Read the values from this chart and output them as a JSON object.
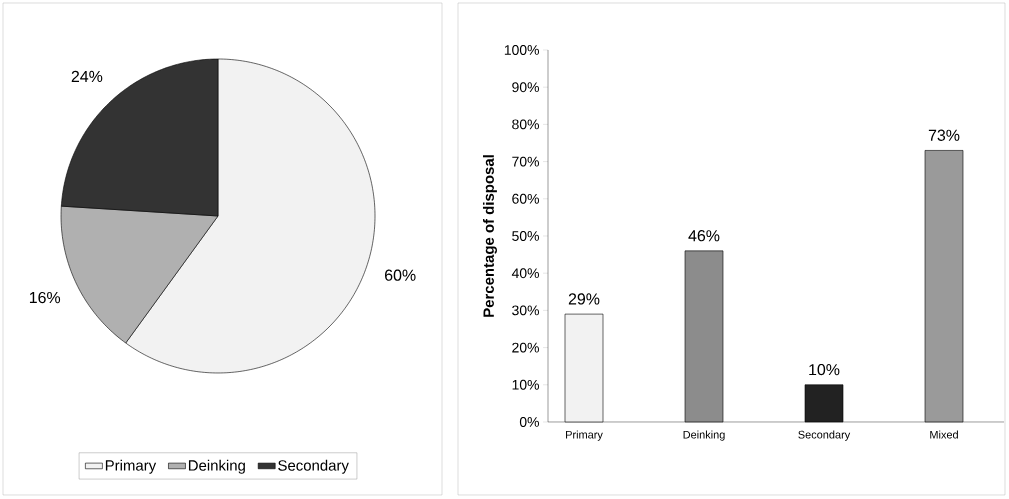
{
  "chart_data": [
    {
      "type": "pie",
      "categories": [
        "Primary",
        "Deinking",
        "Secondary"
      ],
      "values": [
        60,
        16,
        24
      ],
      "colors": [
        "#f2f2f2",
        "#b0b0b0",
        "#333333"
      ],
      "value_labels": [
        "60%",
        "16%",
        "24%"
      ],
      "legend": "bottom"
    },
    {
      "type": "bar",
      "categories": [
        "Primary",
        "Deinking",
        "Secondary",
        "Mixed"
      ],
      "values": [
        29,
        46,
        10,
        73
      ],
      "colors": [
        "#f2f2f2",
        "#8c8c8c",
        "#222222",
        "#9a9a9a"
      ],
      "value_labels": [
        "29%",
        "46%",
        "10%",
        "73%"
      ],
      "ylabel": "Percentage of disposal",
      "ylim": [
        0,
        100
      ],
      "yticks": [
        {
          "value": 0,
          "label": "0%"
        },
        {
          "value": 10,
          "label": "10%"
        },
        {
          "value": 20,
          "label": "20%"
        },
        {
          "value": 30,
          "label": "30%"
        },
        {
          "value": 40,
          "label": "40%"
        },
        {
          "value": 50,
          "label": "50%"
        },
        {
          "value": 60,
          "label": "60%"
        },
        {
          "value": 70,
          "label": "70%"
        },
        {
          "value": 80,
          "label": "80%"
        },
        {
          "value": 90,
          "label": "90%"
        },
        {
          "value": 100,
          "label": "100%"
        }
      ]
    }
  ]
}
